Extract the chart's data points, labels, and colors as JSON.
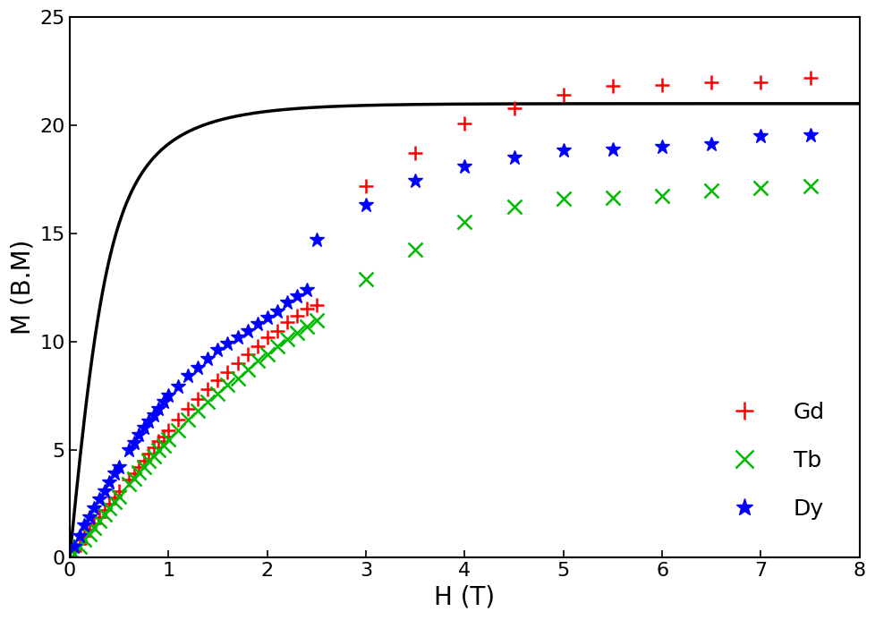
{
  "title": "",
  "xlabel": "H (T)",
  "ylabel": "M (B.M)",
  "xlim": [
    0,
    8
  ],
  "ylim": [
    0,
    25
  ],
  "xticks": [
    0,
    1,
    2,
    3,
    4,
    5,
    6,
    7,
    8
  ],
  "yticks": [
    0,
    5,
    10,
    15,
    20,
    25
  ],
  "gd_color": "#ff0000",
  "tb_color": "#00bb00",
  "dy_color": "#0000ff",
  "curve_color": "#000000",
  "gd_data": [
    [
      0.05,
      0.3
    ],
    [
      0.1,
      0.65
    ],
    [
      0.15,
      1.0
    ],
    [
      0.2,
      1.3
    ],
    [
      0.25,
      1.6
    ],
    [
      0.3,
      1.9
    ],
    [
      0.35,
      2.2
    ],
    [
      0.4,
      2.5
    ],
    [
      0.45,
      2.8
    ],
    [
      0.5,
      3.1
    ],
    [
      0.6,
      3.6
    ],
    [
      0.65,
      3.9
    ],
    [
      0.7,
      4.2
    ],
    [
      0.75,
      4.5
    ],
    [
      0.8,
      4.8
    ],
    [
      0.85,
      5.1
    ],
    [
      0.9,
      5.4
    ],
    [
      0.95,
      5.6
    ],
    [
      1.0,
      5.9
    ],
    [
      1.1,
      6.4
    ],
    [
      1.2,
      6.9
    ],
    [
      1.3,
      7.35
    ],
    [
      1.4,
      7.8
    ],
    [
      1.5,
      8.2
    ],
    [
      1.6,
      8.6
    ],
    [
      1.7,
      9.0
    ],
    [
      1.8,
      9.4
    ],
    [
      1.9,
      9.8
    ],
    [
      2.0,
      10.2
    ],
    [
      2.1,
      10.5
    ],
    [
      2.2,
      10.9
    ],
    [
      2.3,
      11.2
    ],
    [
      2.4,
      11.5
    ],
    [
      2.5,
      11.7
    ],
    [
      3.0,
      17.2
    ],
    [
      3.5,
      18.7
    ],
    [
      4.0,
      20.1
    ],
    [
      4.5,
      20.8
    ],
    [
      5.0,
      21.4
    ],
    [
      5.5,
      21.8
    ],
    [
      6.0,
      21.85
    ],
    [
      6.5,
      22.0
    ],
    [
      7.0,
      22.0
    ],
    [
      7.5,
      22.2
    ]
  ],
  "tb_data": [
    [
      0.05,
      0.2
    ],
    [
      0.1,
      0.5
    ],
    [
      0.15,
      0.85
    ],
    [
      0.2,
      1.1
    ],
    [
      0.25,
      1.4
    ],
    [
      0.3,
      1.7
    ],
    [
      0.35,
      2.0
    ],
    [
      0.4,
      2.3
    ],
    [
      0.45,
      2.6
    ],
    [
      0.5,
      2.85
    ],
    [
      0.6,
      3.4
    ],
    [
      0.65,
      3.65
    ],
    [
      0.7,
      3.95
    ],
    [
      0.75,
      4.2
    ],
    [
      0.8,
      4.5
    ],
    [
      0.85,
      4.7
    ],
    [
      0.9,
      5.0
    ],
    [
      0.95,
      5.2
    ],
    [
      1.0,
      5.5
    ],
    [
      1.1,
      5.9
    ],
    [
      1.2,
      6.4
    ],
    [
      1.3,
      6.8
    ],
    [
      1.4,
      7.2
    ],
    [
      1.5,
      7.6
    ],
    [
      1.6,
      8.0
    ],
    [
      1.7,
      8.3
    ],
    [
      1.8,
      8.7
    ],
    [
      1.9,
      9.1
    ],
    [
      2.0,
      9.4
    ],
    [
      2.1,
      9.8
    ],
    [
      2.2,
      10.1
    ],
    [
      2.3,
      10.4
    ],
    [
      2.4,
      10.7
    ],
    [
      2.5,
      11.0
    ],
    [
      3.0,
      12.9
    ],
    [
      3.5,
      14.25
    ],
    [
      4.0,
      15.55
    ],
    [
      4.5,
      16.25
    ],
    [
      5.0,
      16.6
    ],
    [
      5.5,
      16.65
    ],
    [
      6.0,
      16.75
    ],
    [
      6.5,
      17.0
    ],
    [
      7.0,
      17.1
    ],
    [
      7.5,
      17.2
    ]
  ],
  "dy_data": [
    [
      0.05,
      0.5
    ],
    [
      0.1,
      1.0
    ],
    [
      0.15,
      1.5
    ],
    [
      0.2,
      1.9
    ],
    [
      0.25,
      2.3
    ],
    [
      0.3,
      2.7
    ],
    [
      0.35,
      3.1
    ],
    [
      0.4,
      3.5
    ],
    [
      0.45,
      3.9
    ],
    [
      0.5,
      4.2
    ],
    [
      0.6,
      5.0
    ],
    [
      0.65,
      5.3
    ],
    [
      0.7,
      5.7
    ],
    [
      0.75,
      6.0
    ],
    [
      0.8,
      6.3
    ],
    [
      0.85,
      6.6
    ],
    [
      0.9,
      6.9
    ],
    [
      0.95,
      7.2
    ],
    [
      1.0,
      7.5
    ],
    [
      1.1,
      7.9
    ],
    [
      1.2,
      8.4
    ],
    [
      1.3,
      8.8
    ],
    [
      1.4,
      9.2
    ],
    [
      1.5,
      9.6
    ],
    [
      1.6,
      9.9
    ],
    [
      1.7,
      10.2
    ],
    [
      1.8,
      10.5
    ],
    [
      1.9,
      10.8
    ],
    [
      2.0,
      11.1
    ],
    [
      2.1,
      11.4
    ],
    [
      2.2,
      11.8
    ],
    [
      2.3,
      12.1
    ],
    [
      2.4,
      12.4
    ],
    [
      2.5,
      14.7
    ],
    [
      3.0,
      16.3
    ],
    [
      3.5,
      17.45
    ],
    [
      4.0,
      18.1
    ],
    [
      4.5,
      18.5
    ],
    [
      5.0,
      18.85
    ],
    [
      5.5,
      18.9
    ],
    [
      6.0,
      19.0
    ],
    [
      6.5,
      19.15
    ],
    [
      7.0,
      19.5
    ],
    [
      7.5,
      19.55
    ]
  ],
  "curve_J": 3.5,
  "curve_g": 2.0,
  "curve_Msat": 21.0,
  "curve_T": 2.0,
  "legend_fontsize": 18,
  "tick_fontsize": 16,
  "label_fontsize": 20
}
